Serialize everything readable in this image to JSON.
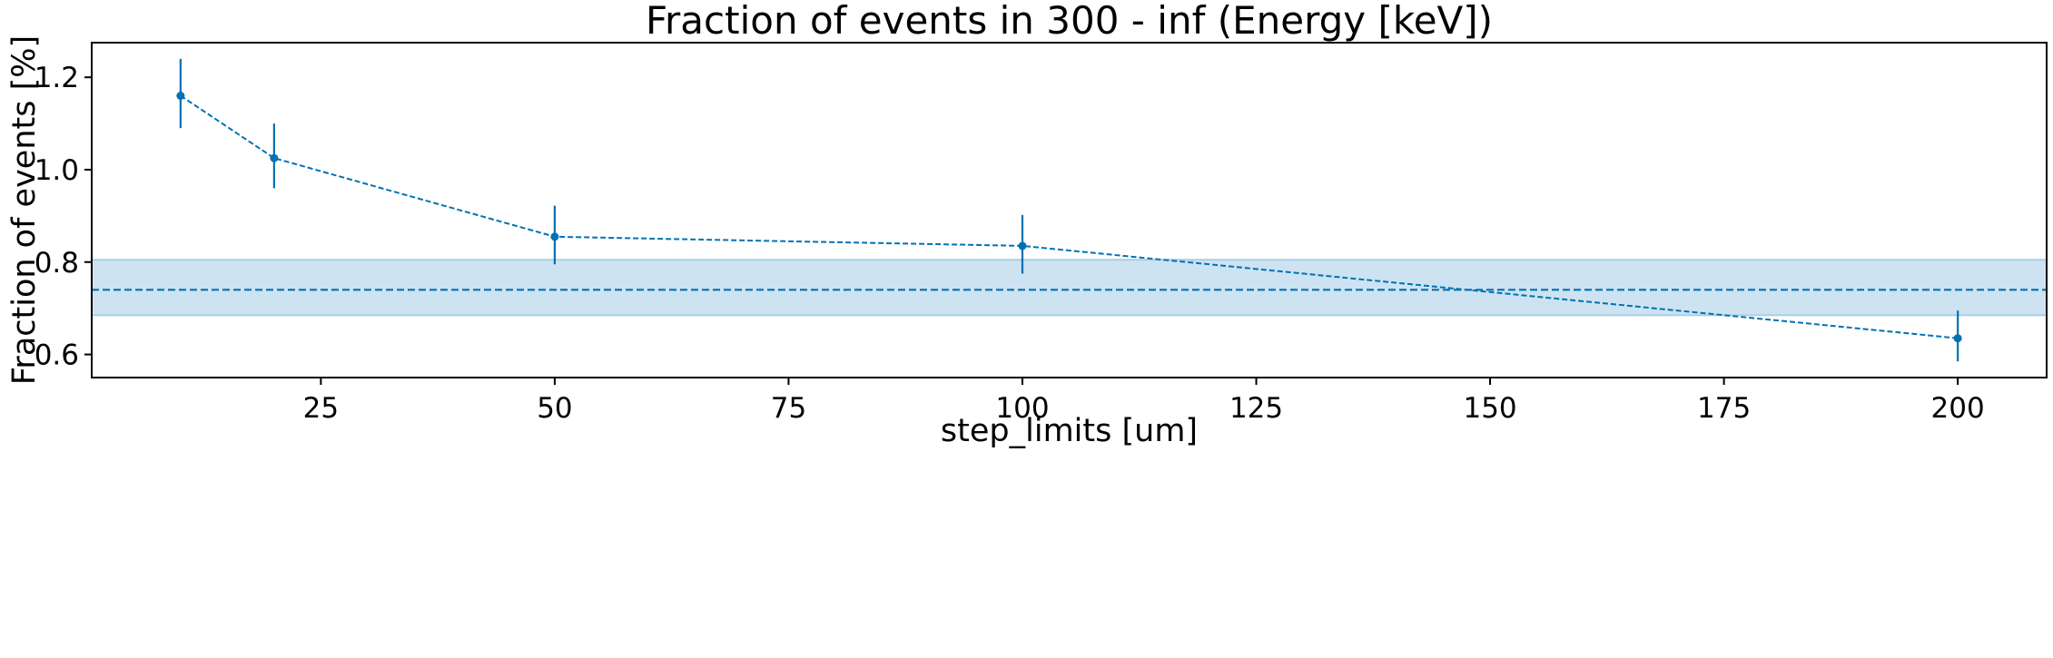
{
  "chart_data": {
    "type": "line",
    "title": "Fraction of events in 300 - inf (Energy [keV])",
    "xlabel": "step_limits [um]",
    "ylabel": "Fraction of events [%]",
    "xlim": [
      0.5,
      209.5
    ],
    "ylim": [
      0.55,
      1.275
    ],
    "xticks": [
      25,
      50,
      75,
      100,
      125,
      150,
      175,
      200
    ],
    "xtick_labels": [
      "25",
      "50",
      "75",
      "100",
      "125",
      "150",
      "175",
      "200"
    ],
    "yticks": [
      0.6,
      0.8,
      1.0,
      1.2
    ],
    "ytick_labels": [
      "0.6",
      "0.8",
      "1.0",
      "1.2"
    ],
    "grid": false,
    "series": [
      {
        "style": "dashed line with point markers and vertical error bars",
        "x": [
          10,
          20,
          50,
          100,
          200
        ],
        "y": [
          1.16,
          1.025,
          0.855,
          0.835,
          0.635
        ],
        "yerr_low": [
          1.09,
          0.96,
          0.795,
          0.775,
          0.585
        ],
        "yerr_high": [
          1.24,
          1.1,
          0.922,
          0.902,
          0.695
        ]
      }
    ],
    "reference": {
      "style": "horizontal dashed line with shaded band",
      "y": 0.74,
      "band": [
        0.685,
        0.805
      ]
    },
    "colors": {
      "series": "#0072B2",
      "band": "#cde3f1",
      "band_edge": "#a9cfe6"
    }
  }
}
